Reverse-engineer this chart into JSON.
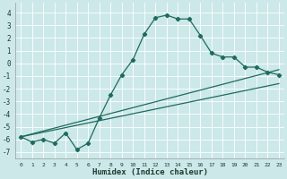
{
  "xlabel": "Humidex (Indice chaleur)",
  "bg_color": "#cce8e8",
  "grid_color": "#ffffff",
  "line_color": "#1e6b5e",
  "xlim": [
    -0.5,
    23.5
  ],
  "ylim": [
    -7.5,
    4.8
  ],
  "x_ticks": [
    0,
    1,
    2,
    3,
    4,
    5,
    6,
    7,
    8,
    9,
    10,
    11,
    12,
    13,
    14,
    15,
    16,
    17,
    18,
    19,
    20,
    21,
    22,
    23
  ],
  "y_ticks": [
    -7,
    -6,
    -5,
    -4,
    -3,
    -2,
    -1,
    0,
    1,
    2,
    3,
    4
  ],
  "curve1_x": [
    0,
    1,
    2,
    3,
    4,
    5,
    6,
    7,
    8,
    9,
    10,
    11,
    12,
    13,
    14,
    15,
    16,
    17,
    18,
    19,
    20,
    21,
    22,
    23
  ],
  "curve1_y": [
    -5.8,
    -6.2,
    -6.0,
    -6.3,
    -5.5,
    -6.8,
    -6.3,
    -4.3,
    -2.5,
    -0.9,
    0.3,
    2.3,
    3.6,
    3.8,
    3.5,
    3.5,
    2.2,
    0.8,
    0.5,
    0.5,
    -0.3,
    -0.3,
    -0.7,
    -0.9
  ],
  "curve2_x": [
    0,
    23
  ],
  "curve2_y": [
    -5.8,
    -0.5
  ],
  "curve3_x": [
    0,
    23
  ],
  "curve3_y": [
    -5.8,
    -1.6
  ],
  "marker_style": "D",
  "marker_size": 2.2,
  "line_width": 0.9
}
